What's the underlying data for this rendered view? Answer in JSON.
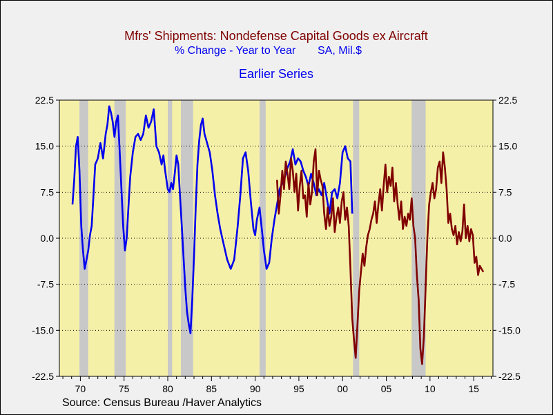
{
  "chart_data": {
    "type": "line",
    "title": "Mfrs' Shipments: Nondefense Capital Goods ex Aircraft",
    "subtitle_left": "% Change - Year to Year",
    "subtitle_right": "SA, Mil.$",
    "legend_label": "Earlier Series",
    "source": "Source:  Census Bureau /Haver Analytics",
    "ylim": [
      -22.5,
      22.5
    ],
    "xlim": [
      1967.6,
      2017.2
    ],
    "y_ticks": [
      22.5,
      15.0,
      7.5,
      0.0,
      -7.5,
      -15.0,
      -22.5
    ],
    "y_tick_labels": [
      "22.5",
      "15.0",
      "7.5",
      "0.0",
      "-7.5",
      "-15.0",
      "-22.5"
    ],
    "x_ticks": [
      1970,
      1975,
      1980,
      1985,
      1990,
      1995,
      2000,
      2005,
      2010,
      2015
    ],
    "x_tick_labels": [
      "70",
      "75",
      "80",
      "85",
      "90",
      "95",
      "00",
      "05",
      "10",
      "15"
    ],
    "recessions": [
      [
        1969.9,
        1970.9
      ],
      [
        1973.9,
        1975.2
      ],
      [
        1980.0,
        1980.5
      ],
      [
        1981.5,
        1982.9
      ],
      [
        1990.5,
        1991.2
      ],
      [
        2001.2,
        2001.9
      ],
      [
        2007.9,
        2009.5
      ]
    ],
    "grid": "horizontal dotted",
    "colors": {
      "earlier": "#0000ee",
      "current": "#800000",
      "title": "#800000",
      "subtitle": "#0000ee",
      "plot_bg": "#f5f0a8",
      "recession": "#c8c8c8"
    },
    "series": [
      {
        "name": "Earlier Series",
        "x": [
          1969.1,
          1969.3,
          1969.5,
          1969.7,
          1969.9,
          1970.1,
          1970.3,
          1970.5,
          1970.7,
          1970.9,
          1971.1,
          1971.3,
          1971.5,
          1971.7,
          1972.0,
          1972.3,
          1972.6,
          1972.9,
          1973.1,
          1973.3,
          1973.5,
          1973.7,
          1973.9,
          1974.1,
          1974.3,
          1974.5,
          1974.7,
          1974.9,
          1975.1,
          1975.3,
          1975.5,
          1975.7,
          1976.0,
          1976.3,
          1976.6,
          1976.9,
          1977.2,
          1977.5,
          1977.8,
          1978.1,
          1978.4,
          1978.7,
          1979.0,
          1979.3,
          1979.5,
          1979.7,
          1980.0,
          1980.2,
          1980.4,
          1980.6,
          1980.8,
          1981.0,
          1981.2,
          1981.4,
          1981.6,
          1981.8,
          1982.0,
          1982.2,
          1982.4,
          1982.6,
          1982.8,
          1983.0,
          1983.2,
          1983.4,
          1983.6,
          1983.8,
          1984.0,
          1984.2,
          1984.5,
          1984.8,
          1985.1,
          1985.4,
          1985.7,
          1986.0,
          1986.4,
          1986.8,
          1987.2,
          1987.6,
          1988.0,
          1988.3,
          1988.6,
          1988.9,
          1989.2,
          1989.5,
          1989.8,
          1990.0,
          1990.2,
          1990.5,
          1990.8,
          1991.0,
          1991.3,
          1991.6,
          1991.9,
          1992.2,
          1992.5,
          1992.8,
          1993.1,
          1993.4,
          1993.7,
          1994.0,
          1994.3,
          1994.6,
          1994.9,
          1995.2,
          1995.5,
          1995.8,
          1996.1,
          1996.4,
          1996.7,
          1997.0,
          1997.3,
          1997.6,
          1997.9,
          1998.2,
          1998.5,
          1998.8,
          1999.1,
          1999.4,
          1999.7,
          2000.0,
          2000.3,
          2000.6,
          2000.9,
          2001.1
        ],
        "values": [
          5.5,
          9.5,
          15.0,
          16.5,
          11.0,
          2.0,
          -2.0,
          -5.0,
          -3.5,
          -2.0,
          0.5,
          2.0,
          7.0,
          12.0,
          13.0,
          15.5,
          13.0,
          17.0,
          18.5,
          21.5,
          20.5,
          19.0,
          16.5,
          19.0,
          20.0,
          14.0,
          8.0,
          2.0,
          -2.0,
          0.0,
          5.0,
          10.0,
          14.0,
          16.5,
          17.0,
          16.0,
          17.0,
          20.0,
          18.0,
          19.0,
          21.0,
          15.0,
          14.0,
          12.0,
          13.5,
          11.0,
          8.0,
          7.5,
          9.0,
          8.0,
          10.5,
          13.5,
          12.0,
          7.0,
          2.0,
          -3.0,
          -8.0,
          -12.0,
          -14.0,
          -15.5,
          -10.0,
          -3.0,
          5.0,
          12.0,
          16.0,
          18.5,
          19.5,
          17.0,
          15.5,
          14.0,
          11.0,
          7.0,
          4.0,
          1.5,
          -1.0,
          -3.5,
          -5.0,
          -3.5,
          2.0,
          7.0,
          13.0,
          14.0,
          11.0,
          6.0,
          1.5,
          0.5,
          3.0,
          5.0,
          1.0,
          -2.0,
          -5.0,
          -4.0,
          0.0,
          3.0,
          5.5,
          8.0,
          9.0,
          10.0,
          11.5,
          12.5,
          14.5,
          12.0,
          13.0,
          12.5,
          11.0,
          10.0,
          8.5,
          10.5,
          9.0,
          7.0,
          8.0,
          7.0,
          9.0,
          6.5,
          4.0,
          7.5,
          8.0,
          6.5,
          9.0,
          14.0,
          15.0,
          13.0,
          12.5,
          4.0
        ]
      },
      {
        "name": "",
        "x": [
          1992.5,
          1992.7,
          1992.9,
          1993.1,
          1993.3,
          1993.5,
          1993.7,
          1993.9,
          1994.1,
          1994.3,
          1994.5,
          1994.7,
          1994.9,
          1995.1,
          1995.3,
          1995.5,
          1995.7,
          1995.9,
          1996.1,
          1996.3,
          1996.5,
          1996.7,
          1996.9,
          1997.1,
          1997.3,
          1997.5,
          1997.7,
          1997.9,
          1998.1,
          1998.3,
          1998.5,
          1998.7,
          1998.9,
          1999.1,
          1999.3,
          1999.5,
          1999.7,
          1999.9,
          2000.1,
          2000.3,
          2000.5,
          2000.7,
          2000.9,
          2001.1,
          2001.3,
          2001.5,
          2001.7,
          2001.9,
          2002.1,
          2002.3,
          2002.5,
          2002.7,
          2002.9,
          2003.1,
          2003.3,
          2003.5,
          2003.7,
          2003.9,
          2004.1,
          2004.3,
          2004.5,
          2004.7,
          2004.9,
          2005.1,
          2005.3,
          2005.5,
          2005.7,
          2005.9,
          2006.1,
          2006.3,
          2006.5,
          2006.7,
          2006.9,
          2007.1,
          2007.3,
          2007.5,
          2007.7,
          2007.9,
          2008.1,
          2008.3,
          2008.5,
          2008.7,
          2008.9,
          2009.1,
          2009.3,
          2009.5,
          2009.7,
          2009.9,
          2010.1,
          2010.3,
          2010.5,
          2010.7,
          2010.9,
          2011.1,
          2011.3,
          2011.5,
          2011.7,
          2011.9,
          2012.1,
          2012.3,
          2012.5,
          2012.7,
          2012.9,
          2013.1,
          2013.3,
          2013.5,
          2013.7,
          2013.9,
          2014.1,
          2014.3,
          2014.5,
          2014.7,
          2014.9,
          2015.1,
          2015.3,
          2015.5,
          2015.7,
          2015.9,
          2016.1
        ],
        "values": [
          9.5,
          4.0,
          7.0,
          11.0,
          8.0,
          12.5,
          10.5,
          8.0,
          13.0,
          11.0,
          7.5,
          10.5,
          4.5,
          8.5,
          11.0,
          6.5,
          7.0,
          3.5,
          9.0,
          5.5,
          7.5,
          12.5,
          14.5,
          7.0,
          11.0,
          9.5,
          8.5,
          4.0,
          1.5,
          5.0,
          2.0,
          3.5,
          6.5,
          1.0,
          3.5,
          5.0,
          2.5,
          6.0,
          7.5,
          3.0,
          5.0,
          2.0,
          -5.0,
          -13.0,
          -16.5,
          -19.5,
          -14.0,
          -8.5,
          -5.5,
          -2.5,
          -4.5,
          -1.5,
          0.5,
          1.5,
          3.0,
          4.0,
          6.0,
          2.5,
          5.5,
          8.0,
          4.5,
          8.5,
          12.0,
          7.5,
          10.0,
          8.5,
          11.5,
          6.0,
          9.0,
          5.5,
          3.0,
          6.0,
          1.5,
          3.5,
          2.0,
          4.0,
          3.0,
          6.5,
          2.0,
          0.0,
          -6.0,
          -10.0,
          -18.0,
          -20.5,
          -16.0,
          -8.0,
          0.0,
          5.5,
          7.5,
          9.0,
          6.5,
          8.0,
          11.5,
          12.5,
          9.0,
          14.0,
          11.5,
          8.0,
          2.5,
          4.0,
          1.5,
          0.5,
          2.0,
          -1.0,
          1.0,
          -0.5,
          1.0,
          5.5,
          0.0,
          2.0,
          -0.5,
          1.5,
          0.5,
          -4.0,
          -3.0,
          -6.0,
          -4.5,
          -5.0,
          -5.5
        ]
      }
    ]
  }
}
